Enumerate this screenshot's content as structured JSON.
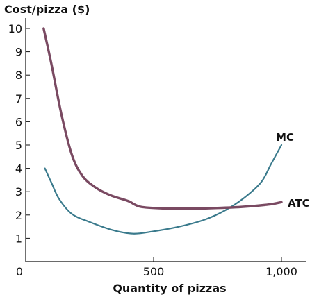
{
  "chart_data": {
    "type": "line",
    "title": "",
    "ylabel": "Cost/pizza ($)",
    "xlabel": "Quantity of pizzas",
    "xlim": [
      0,
      1000
    ],
    "ylim": [
      0,
      10
    ],
    "x_ticks": [
      {
        "value": 0,
        "label": "0"
      },
      {
        "value": 500,
        "label": "500"
      },
      {
        "value": 1000,
        "label": "1,000"
      }
    ],
    "y_ticks": [
      {
        "value": 1,
        "label": "1"
      },
      {
        "value": 2,
        "label": "2"
      },
      {
        "value": 3,
        "label": "3"
      },
      {
        "value": 4,
        "label": "4"
      },
      {
        "value": 5,
        "label": "5"
      },
      {
        "value": 6,
        "label": "6"
      },
      {
        "value": 7,
        "label": "7"
      },
      {
        "value": 8,
        "label": "8"
      },
      {
        "value": 9,
        "label": "9"
      },
      {
        "value": 10,
        "label": "10"
      }
    ],
    "grid": false,
    "legend": "none",
    "series": [
      {
        "name": "MC",
        "color": "#3a7a8c",
        "points": [
          [
            75,
            4.0
          ],
          [
            100,
            3.4
          ],
          [
            130,
            2.7
          ],
          [
            180,
            2.05
          ],
          [
            250,
            1.7
          ],
          [
            340,
            1.35
          ],
          [
            420,
            1.2
          ],
          [
            500,
            1.3
          ],
          [
            600,
            1.5
          ],
          [
            700,
            1.8
          ],
          [
            780,
            2.2
          ],
          [
            850,
            2.7
          ],
          [
            920,
            3.4
          ],
          [
            960,
            4.2
          ],
          [
            1000,
            5.0
          ]
        ]
      },
      {
        "name": "ATC",
        "color": "#7a4a62",
        "points": [
          [
            70,
            10.0
          ],
          [
            100,
            8.5
          ],
          [
            140,
            6.3
          ],
          [
            180,
            4.6
          ],
          [
            220,
            3.7
          ],
          [
            270,
            3.2
          ],
          [
            330,
            2.85
          ],
          [
            400,
            2.6
          ],
          [
            450,
            2.35
          ],
          [
            550,
            2.28
          ],
          [
            650,
            2.27
          ],
          [
            750,
            2.3
          ],
          [
            850,
            2.35
          ],
          [
            950,
            2.45
          ],
          [
            1000,
            2.55
          ]
        ]
      }
    ]
  }
}
